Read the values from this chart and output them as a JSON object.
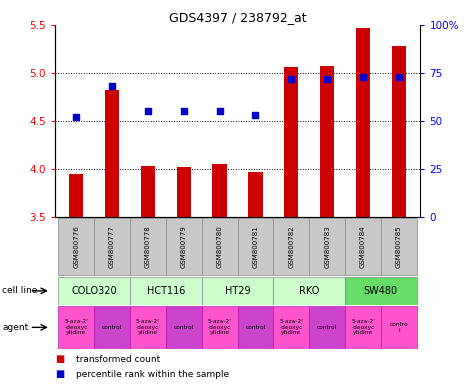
{
  "title": "GDS4397 / 238792_at",
  "samples": [
    "GSM800776",
    "GSM800777",
    "GSM800778",
    "GSM800779",
    "GSM800780",
    "GSM800781",
    "GSM800782",
    "GSM800783",
    "GSM800784",
    "GSM800785"
  ],
  "red_values": [
    3.95,
    4.82,
    4.03,
    4.02,
    4.05,
    3.97,
    5.06,
    5.07,
    5.47,
    5.28
  ],
  "blue_values_left": [
    0.52,
    0.68,
    0.55,
    0.55,
    0.55,
    0.53,
    0.72,
    0.72,
    0.73,
    0.73
  ],
  "ylim_left": [
    3.5,
    5.5
  ],
  "ylim_right": [
    0.0,
    1.0
  ],
  "yticks_left": [
    3.5,
    4.0,
    4.5,
    5.0,
    5.5
  ],
  "yticks_right": [
    0.0,
    0.25,
    0.5,
    0.75,
    1.0
  ],
  "ytick_labels_right": [
    "0",
    "25",
    "50",
    "75",
    "100%"
  ],
  "cell_lines": [
    "COLO320",
    "HCT116",
    "HT29",
    "RKO",
    "SW480"
  ],
  "cell_line_spans": [
    [
      0,
      1
    ],
    [
      2,
      3
    ],
    [
      4,
      5
    ],
    [
      6,
      7
    ],
    [
      8,
      9
    ]
  ],
  "agents": [
    "5-aza-2'\n-deoxyc\nytidine",
    "control",
    "5-aza-2'\n-deoxyc\nytidine",
    "control",
    "5-aza-2'\n-deoxyc\nytidine",
    "control",
    "5-aza-2'\n-deoxyc\nytidine",
    "control",
    "5-aza-2'\n-deoxyc\nytidine",
    "contro\nl"
  ],
  "cell_line_color_light": "#CCFFCC",
  "cell_line_color_dark": "#66DD66",
  "agent_drug_color": "#FF55CC",
  "agent_control_color": "#CC44CC",
  "bar_color": "#CC0000",
  "dot_color": "#0000CC",
  "sample_bg": "#C8C8C8",
  "bar_bottom": 3.5,
  "bar_width": 0.4
}
